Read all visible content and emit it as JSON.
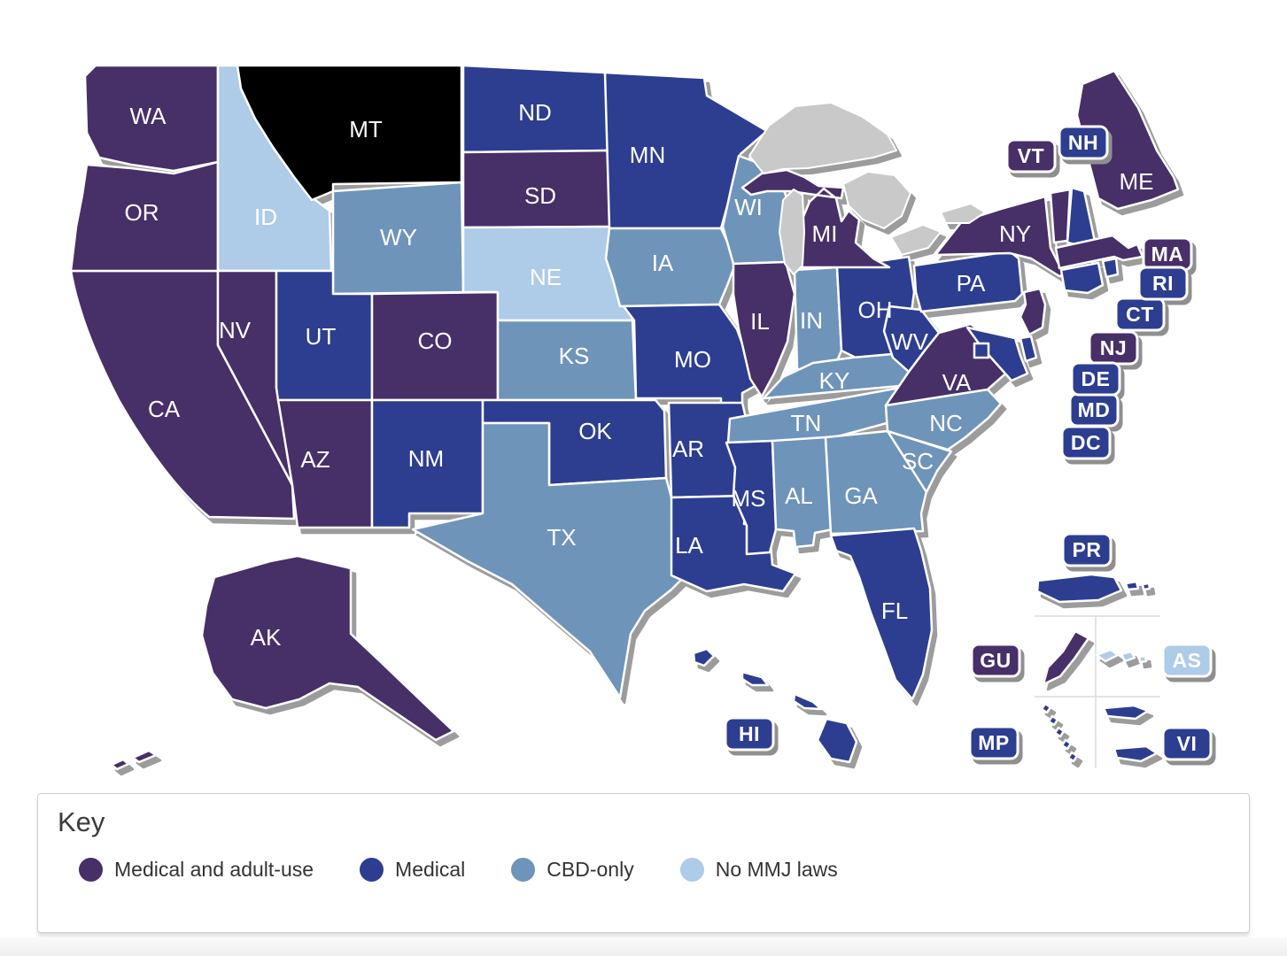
{
  "key": {
    "title": "Key"
  },
  "map": {
    "water_color": "#c9c9c9",
    "selected_state": "MT",
    "selected_color": "#000000",
    "categories": [
      {
        "id": "adult",
        "label": "Medical and adult-use",
        "color": "#472f68"
      },
      {
        "id": "medical",
        "label": "Medical",
        "color": "#2d3e90"
      },
      {
        "id": "cbd",
        "label": "CBD-only",
        "color": "#6f94ba"
      },
      {
        "id": "none",
        "label": "No MMJ laws",
        "color": "#aecbe8"
      }
    ],
    "states": [
      {
        "code": "CA",
        "category": "adult"
      },
      {
        "code": "OR",
        "category": "adult"
      },
      {
        "code": "WA",
        "category": "adult"
      },
      {
        "code": "ID",
        "category": "none"
      },
      {
        "code": "MT",
        "category": "selected"
      },
      {
        "code": "WY",
        "category": "cbd"
      },
      {
        "code": "NV",
        "category": "adult"
      },
      {
        "code": "UT",
        "category": "medical"
      },
      {
        "code": "CO",
        "category": "adult"
      },
      {
        "code": "AZ",
        "category": "adult"
      },
      {
        "code": "NM",
        "category": "medical"
      },
      {
        "code": "ND",
        "category": "medical"
      },
      {
        "code": "SD",
        "category": "adult"
      },
      {
        "code": "NE",
        "category": "none"
      },
      {
        "code": "KS",
        "category": "cbd"
      },
      {
        "code": "OK",
        "category": "medical"
      },
      {
        "code": "TX",
        "category": "cbd"
      },
      {
        "code": "MN",
        "category": "medical"
      },
      {
        "code": "IA",
        "category": "cbd"
      },
      {
        "code": "MO",
        "category": "medical"
      },
      {
        "code": "AR",
        "category": "medical"
      },
      {
        "code": "LA",
        "category": "medical"
      },
      {
        "code": "WI",
        "category": "cbd"
      },
      {
        "code": "IL",
        "category": "adult"
      },
      {
        "code": "IN",
        "category": "cbd"
      },
      {
        "code": "OH",
        "category": "medical"
      },
      {
        "code": "MI",
        "category": "adult"
      },
      {
        "code": "KY",
        "category": "cbd"
      },
      {
        "code": "TN",
        "category": "cbd"
      },
      {
        "code": "MS",
        "category": "medical"
      },
      {
        "code": "AL",
        "category": "cbd"
      },
      {
        "code": "GA",
        "category": "cbd"
      },
      {
        "code": "SC",
        "category": "cbd"
      },
      {
        "code": "NC",
        "category": "cbd"
      },
      {
        "code": "FL",
        "category": "medical"
      },
      {
        "code": "WV",
        "category": "medical"
      },
      {
        "code": "VA",
        "category": "adult"
      },
      {
        "code": "PA",
        "category": "medical"
      },
      {
        "code": "NY",
        "category": "adult"
      },
      {
        "code": "NJ",
        "category": "adult"
      },
      {
        "code": "MD",
        "category": "medical"
      },
      {
        "code": "DE",
        "category": "medical"
      },
      {
        "code": "VT",
        "category": "adult"
      },
      {
        "code": "NH",
        "category": "medical"
      },
      {
        "code": "MA",
        "category": "adult"
      },
      {
        "code": "CT",
        "category": "medical"
      },
      {
        "code": "RI",
        "category": "medical"
      },
      {
        "code": "ME",
        "category": "adult"
      },
      {
        "code": "AK",
        "category": "adult"
      },
      {
        "code": "HI",
        "category": "medical"
      },
      {
        "code": "PR",
        "category": "medical"
      },
      {
        "code": "GU",
        "category": "adult"
      },
      {
        "code": "AS",
        "category": "none"
      },
      {
        "code": "MP",
        "category": "medical"
      },
      {
        "code": "VI",
        "category": "medical"
      },
      {
        "code": "DC",
        "category": "medical"
      }
    ]
  }
}
